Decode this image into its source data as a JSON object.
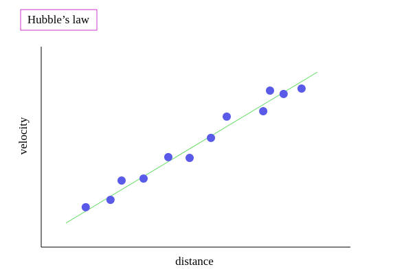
{
  "chart_data": {
    "type": "scatter",
    "title": "Hubble’s law",
    "xlabel": "distance",
    "ylabel": "velocity",
    "xlim": [
      0,
      100
    ],
    "ylim": [
      0,
      100
    ],
    "series": [
      {
        "color": "#5a5ae8",
        "x": [
          14.4,
          22.4,
          26,
          33.1,
          41.1,
          48,
          54.9,
          60,
          71.8,
          74,
          78.4,
          84.2
        ],
        "values": [
          19.9,
          23.6,
          33.2,
          34.2,
          44.9,
          44.5,
          54.5,
          65.1,
          67.8,
          78.1,
          76.4,
          79.1
        ]
      }
    ],
    "trend": {
      "color": "#66dd66",
      "x": [
        8,
        89.3
      ],
      "values": [
        12,
        87.3
      ]
    }
  }
}
